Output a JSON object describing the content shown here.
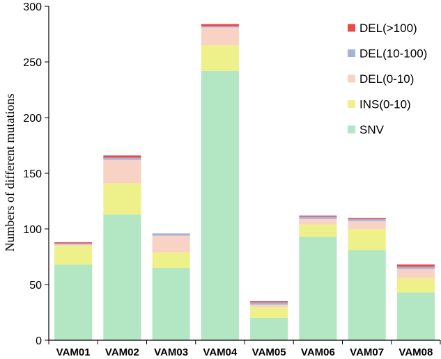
{
  "chart_data": {
    "type": "bar",
    "stacked": true,
    "title": "",
    "xlabel": "",
    "ylabel": "Numbers of different mutations",
    "ylim": [
      0,
      300
    ],
    "yticks": [
      0,
      50,
      100,
      150,
      200,
      250,
      300
    ],
    "grid": false,
    "legend_position": "top-right",
    "categories": [
      "VAM01",
      "VAM02",
      "VAM03",
      "VAM04",
      "VAM05",
      "VAM06",
      "VAM07",
      "VAM08"
    ],
    "series": [
      {
        "name": "SNV",
        "color": "#b3e6c3",
        "values": [
          68,
          113,
          65,
          242,
          20,
          93,
          81,
          43
        ]
      },
      {
        "name": "INS(0-10)",
        "color": "#eef08a",
        "values": [
          17,
          28,
          14,
          23,
          10,
          11,
          19,
          13
        ]
      },
      {
        "name": "DEL(0-10)",
        "color": "#f8d2c4",
        "values": [
          1,
          21,
          15,
          16,
          2,
          5,
          7,
          8
        ]
      },
      {
        "name": "DEL(10-100)",
        "color": "#a3b3dc",
        "values": [
          1,
          2,
          2,
          1,
          2,
          2,
          2,
          2
        ]
      },
      {
        "name": "DEL(>100)",
        "color": "#e94a4a",
        "values": [
          1,
          2,
          0,
          2,
          1,
          1,
          1,
          2
        ]
      }
    ]
  }
}
